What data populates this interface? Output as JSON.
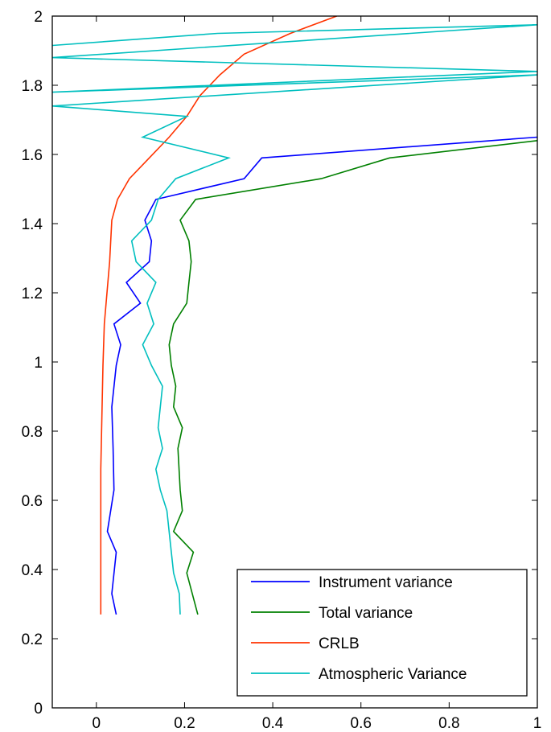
{
  "chart_data": {
    "type": "line",
    "title": "",
    "xlabel": "",
    "ylabel": "",
    "xlim": [
      -0.1,
      1
    ],
    "ylim": [
      0,
      2
    ],
    "xticks": [
      0,
      0.2,
      0.4,
      0.6,
      0.8,
      1
    ],
    "xtick_labels": [
      "0",
      "0.2",
      "0.4",
      "0.6",
      "0.8",
      "1"
    ],
    "yticks": [
      0,
      0.2,
      0.4,
      0.6,
      0.8,
      1,
      1.2,
      1.4,
      1.6,
      1.8,
      2
    ],
    "ytick_labels": [
      "0",
      "0.2",
      "0.4",
      "0.6",
      "0.8",
      "1",
      "1.2",
      "1.4",
      "1.6",
      "1.8",
      "2"
    ],
    "grid": false,
    "legend_position": "bottom-right",
    "series": [
      {
        "name": "Instrument variance",
        "color": "#0000ff",
        "points": [
          [
            0.045,
            0.27
          ],
          [
            0.035,
            0.33
          ],
          [
            0.045,
            0.45
          ],
          [
            0.025,
            0.51
          ],
          [
            0.04,
            0.63
          ],
          [
            0.038,
            0.75
          ],
          [
            0.035,
            0.87
          ],
          [
            0.045,
            0.99
          ],
          [
            0.055,
            1.05
          ],
          [
            0.04,
            1.11
          ],
          [
            0.1,
            1.17
          ],
          [
            0.068,
            1.23
          ],
          [
            0.12,
            1.29
          ],
          [
            0.125,
            1.35
          ],
          [
            0.11,
            1.41
          ],
          [
            0.135,
            1.47
          ],
          [
            0.335,
            1.53
          ],
          [
            0.375,
            1.59
          ],
          [
            1.0,
            1.65
          ]
        ]
      },
      {
        "name": "Total variance",
        "color": "#008000",
        "points": [
          [
            0.23,
            0.27
          ],
          [
            0.205,
            0.39
          ],
          [
            0.22,
            0.45
          ],
          [
            0.175,
            0.51
          ],
          [
            0.195,
            0.57
          ],
          [
            0.19,
            0.63
          ],
          [
            0.185,
            0.75
          ],
          [
            0.195,
            0.81
          ],
          [
            0.175,
            0.87
          ],
          [
            0.18,
            0.93
          ],
          [
            0.17,
            0.99
          ],
          [
            0.165,
            1.05
          ],
          [
            0.175,
            1.11
          ],
          [
            0.205,
            1.17
          ],
          [
            0.21,
            1.23
          ],
          [
            0.215,
            1.29
          ],
          [
            0.21,
            1.35
          ],
          [
            0.19,
            1.41
          ],
          [
            0.225,
            1.47
          ],
          [
            0.51,
            1.53
          ],
          [
            0.665,
            1.59
          ],
          [
            1.0,
            1.64
          ]
        ]
      },
      {
        "name": "CRLB",
        "color": "#ff3300",
        "points": [
          [
            0.01,
            0.27
          ],
          [
            0.01,
            0.69
          ],
          [
            0.015,
            0.99
          ],
          [
            0.018,
            1.11
          ],
          [
            0.03,
            1.29
          ],
          [
            0.035,
            1.41
          ],
          [
            0.048,
            1.47
          ],
          [
            0.075,
            1.53
          ],
          [
            0.12,
            1.59
          ],
          [
            0.165,
            1.65
          ],
          [
            0.205,
            1.71
          ],
          [
            0.235,
            1.77
          ],
          [
            0.28,
            1.83
          ],
          [
            0.335,
            1.89
          ],
          [
            0.44,
            1.95
          ],
          [
            0.545,
            2.0
          ]
        ]
      },
      {
        "name": "Atmospheric Variance",
        "color": "#00bfbf",
        "points": [
          [
            0.19,
            0.27
          ],
          [
            0.188,
            0.33
          ],
          [
            0.175,
            0.39
          ],
          [
            0.17,
            0.45
          ],
          [
            0.16,
            0.57
          ],
          [
            0.145,
            0.63
          ],
          [
            0.135,
            0.69
          ],
          [
            0.15,
            0.75
          ],
          [
            0.14,
            0.81
          ],
          [
            0.145,
            0.87
          ],
          [
            0.15,
            0.93
          ],
          [
            0.125,
            0.99
          ],
          [
            0.105,
            1.05
          ],
          [
            0.13,
            1.11
          ],
          [
            0.115,
            1.17
          ],
          [
            0.135,
            1.23
          ],
          [
            0.09,
            1.29
          ],
          [
            0.08,
            1.35
          ],
          [
            0.125,
            1.41
          ],
          [
            0.14,
            1.47
          ],
          [
            0.18,
            1.53
          ],
          [
            0.3,
            1.59
          ],
          [
            0.105,
            1.65
          ],
          [
            0.205,
            1.71
          ],
          [
            -0.1,
            1.74
          ],
          [
            1.0,
            1.83
          ],
          [
            -0.1,
            1.78
          ],
          [
            1.0,
            1.84
          ],
          [
            -0.1,
            1.88
          ],
          [
            1.0,
            1.975
          ],
          [
            0.275,
            1.95
          ],
          [
            -0.1,
            1.915
          ]
        ]
      }
    ]
  }
}
